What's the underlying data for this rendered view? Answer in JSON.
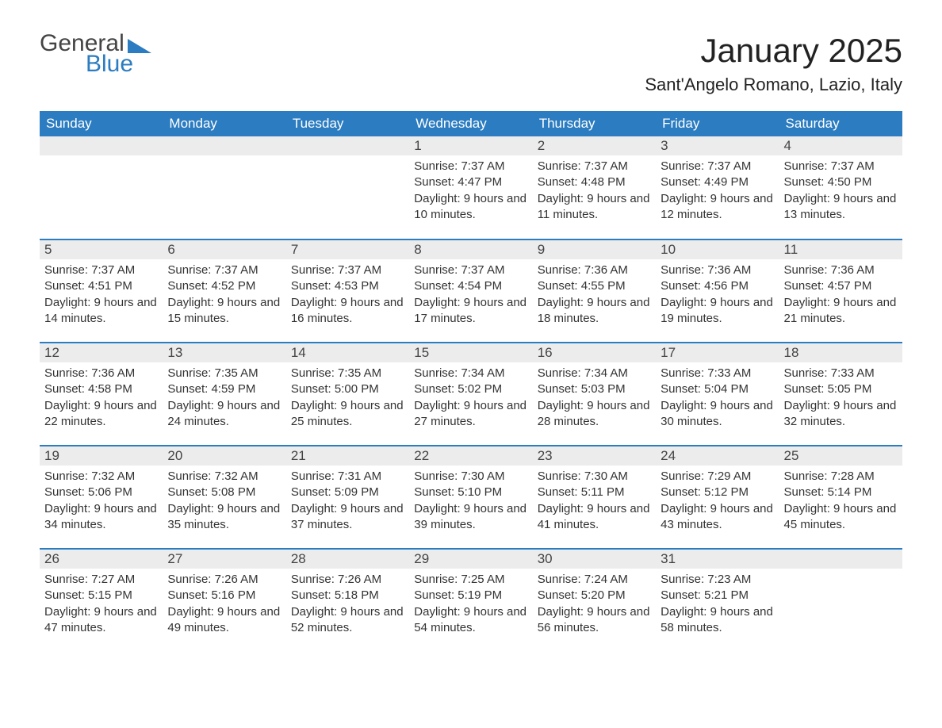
{
  "logo": {
    "text1": "General",
    "text2": "Blue"
  },
  "title": "January 2025",
  "location": "Sant'Angelo Romano, Lazio, Italy",
  "colors": {
    "header_bg": "#2b7cc0",
    "header_text": "#ffffff",
    "daynum_bg": "#ececec",
    "row_border": "#2b7cc0",
    "body_text": "#333333",
    "page_bg": "#ffffff"
  },
  "weekdays": [
    "Sunday",
    "Monday",
    "Tuesday",
    "Wednesday",
    "Thursday",
    "Friday",
    "Saturday"
  ],
  "weeks": [
    [
      {
        "day": "",
        "sunrise": "",
        "sunset": "",
        "daylight": ""
      },
      {
        "day": "",
        "sunrise": "",
        "sunset": "",
        "daylight": ""
      },
      {
        "day": "",
        "sunrise": "",
        "sunset": "",
        "daylight": ""
      },
      {
        "day": "1",
        "sunrise": "Sunrise: 7:37 AM",
        "sunset": "Sunset: 4:47 PM",
        "daylight": "Daylight: 9 hours and 10 minutes."
      },
      {
        "day": "2",
        "sunrise": "Sunrise: 7:37 AM",
        "sunset": "Sunset: 4:48 PM",
        "daylight": "Daylight: 9 hours and 11 minutes."
      },
      {
        "day": "3",
        "sunrise": "Sunrise: 7:37 AM",
        "sunset": "Sunset: 4:49 PM",
        "daylight": "Daylight: 9 hours and 12 minutes."
      },
      {
        "day": "4",
        "sunrise": "Sunrise: 7:37 AM",
        "sunset": "Sunset: 4:50 PM",
        "daylight": "Daylight: 9 hours and 13 minutes."
      }
    ],
    [
      {
        "day": "5",
        "sunrise": "Sunrise: 7:37 AM",
        "sunset": "Sunset: 4:51 PM",
        "daylight": "Daylight: 9 hours and 14 minutes."
      },
      {
        "day": "6",
        "sunrise": "Sunrise: 7:37 AM",
        "sunset": "Sunset: 4:52 PM",
        "daylight": "Daylight: 9 hours and 15 minutes."
      },
      {
        "day": "7",
        "sunrise": "Sunrise: 7:37 AM",
        "sunset": "Sunset: 4:53 PM",
        "daylight": "Daylight: 9 hours and 16 minutes."
      },
      {
        "day": "8",
        "sunrise": "Sunrise: 7:37 AM",
        "sunset": "Sunset: 4:54 PM",
        "daylight": "Daylight: 9 hours and 17 minutes."
      },
      {
        "day": "9",
        "sunrise": "Sunrise: 7:36 AM",
        "sunset": "Sunset: 4:55 PM",
        "daylight": "Daylight: 9 hours and 18 minutes."
      },
      {
        "day": "10",
        "sunrise": "Sunrise: 7:36 AM",
        "sunset": "Sunset: 4:56 PM",
        "daylight": "Daylight: 9 hours and 19 minutes."
      },
      {
        "day": "11",
        "sunrise": "Sunrise: 7:36 AM",
        "sunset": "Sunset: 4:57 PM",
        "daylight": "Daylight: 9 hours and 21 minutes."
      }
    ],
    [
      {
        "day": "12",
        "sunrise": "Sunrise: 7:36 AM",
        "sunset": "Sunset: 4:58 PM",
        "daylight": "Daylight: 9 hours and 22 minutes."
      },
      {
        "day": "13",
        "sunrise": "Sunrise: 7:35 AM",
        "sunset": "Sunset: 4:59 PM",
        "daylight": "Daylight: 9 hours and 24 minutes."
      },
      {
        "day": "14",
        "sunrise": "Sunrise: 7:35 AM",
        "sunset": "Sunset: 5:00 PM",
        "daylight": "Daylight: 9 hours and 25 minutes."
      },
      {
        "day": "15",
        "sunrise": "Sunrise: 7:34 AM",
        "sunset": "Sunset: 5:02 PM",
        "daylight": "Daylight: 9 hours and 27 minutes."
      },
      {
        "day": "16",
        "sunrise": "Sunrise: 7:34 AM",
        "sunset": "Sunset: 5:03 PM",
        "daylight": "Daylight: 9 hours and 28 minutes."
      },
      {
        "day": "17",
        "sunrise": "Sunrise: 7:33 AM",
        "sunset": "Sunset: 5:04 PM",
        "daylight": "Daylight: 9 hours and 30 minutes."
      },
      {
        "day": "18",
        "sunrise": "Sunrise: 7:33 AM",
        "sunset": "Sunset: 5:05 PM",
        "daylight": "Daylight: 9 hours and 32 minutes."
      }
    ],
    [
      {
        "day": "19",
        "sunrise": "Sunrise: 7:32 AM",
        "sunset": "Sunset: 5:06 PM",
        "daylight": "Daylight: 9 hours and 34 minutes."
      },
      {
        "day": "20",
        "sunrise": "Sunrise: 7:32 AM",
        "sunset": "Sunset: 5:08 PM",
        "daylight": "Daylight: 9 hours and 35 minutes."
      },
      {
        "day": "21",
        "sunrise": "Sunrise: 7:31 AM",
        "sunset": "Sunset: 5:09 PM",
        "daylight": "Daylight: 9 hours and 37 minutes."
      },
      {
        "day": "22",
        "sunrise": "Sunrise: 7:30 AM",
        "sunset": "Sunset: 5:10 PM",
        "daylight": "Daylight: 9 hours and 39 minutes."
      },
      {
        "day": "23",
        "sunrise": "Sunrise: 7:30 AM",
        "sunset": "Sunset: 5:11 PM",
        "daylight": "Daylight: 9 hours and 41 minutes."
      },
      {
        "day": "24",
        "sunrise": "Sunrise: 7:29 AM",
        "sunset": "Sunset: 5:12 PM",
        "daylight": "Daylight: 9 hours and 43 minutes."
      },
      {
        "day": "25",
        "sunrise": "Sunrise: 7:28 AM",
        "sunset": "Sunset: 5:14 PM",
        "daylight": "Daylight: 9 hours and 45 minutes."
      }
    ],
    [
      {
        "day": "26",
        "sunrise": "Sunrise: 7:27 AM",
        "sunset": "Sunset: 5:15 PM",
        "daylight": "Daylight: 9 hours and 47 minutes."
      },
      {
        "day": "27",
        "sunrise": "Sunrise: 7:26 AM",
        "sunset": "Sunset: 5:16 PM",
        "daylight": "Daylight: 9 hours and 49 minutes."
      },
      {
        "day": "28",
        "sunrise": "Sunrise: 7:26 AM",
        "sunset": "Sunset: 5:18 PM",
        "daylight": "Daylight: 9 hours and 52 minutes."
      },
      {
        "day": "29",
        "sunrise": "Sunrise: 7:25 AM",
        "sunset": "Sunset: 5:19 PM",
        "daylight": "Daylight: 9 hours and 54 minutes."
      },
      {
        "day": "30",
        "sunrise": "Sunrise: 7:24 AM",
        "sunset": "Sunset: 5:20 PM",
        "daylight": "Daylight: 9 hours and 56 minutes."
      },
      {
        "day": "31",
        "sunrise": "Sunrise: 7:23 AM",
        "sunset": "Sunset: 5:21 PM",
        "daylight": "Daylight: 9 hours and 58 minutes."
      },
      {
        "day": "",
        "sunrise": "",
        "sunset": "",
        "daylight": ""
      }
    ]
  ]
}
